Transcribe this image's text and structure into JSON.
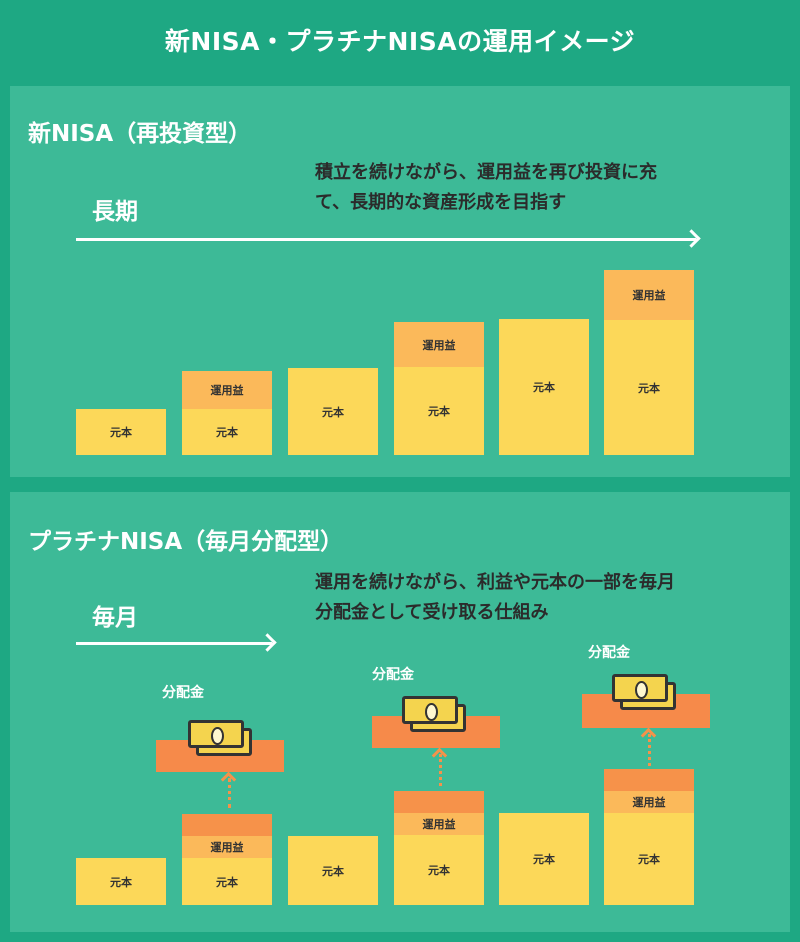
{
  "title": "新NISA・プラチナNISAの運用イメージ",
  "panel_a": {
    "title": "新NISA（再投資型）",
    "period": "長期",
    "description_line1": "積立を続けながら、運用益を再び投資に充",
    "description_line2": "て、長期的な資産形成を目指す",
    "bars": [
      {
        "principal": "元本"
      },
      {
        "principal": "元本",
        "profit": "運用益"
      },
      {
        "principal": "元本"
      },
      {
        "principal": "元本",
        "profit": "運用益"
      },
      {
        "principal": "元本"
      },
      {
        "principal": "元本",
        "profit": "運用益"
      }
    ]
  },
  "panel_b": {
    "title": "プラチナNISA（毎月分配型）",
    "period": "毎月",
    "description_line1": "運用を続けながら、利益や元本の一部を毎月",
    "description_line2": "分配金として受け取る仕組み",
    "distribution_label": "分配金",
    "bars": [
      {
        "principal": "元本"
      },
      {
        "principal": "元本",
        "profit": "運用益"
      },
      {
        "principal": "元本"
      },
      {
        "principal": "元本",
        "profit": "運用益"
      },
      {
        "principal": "元本"
      },
      {
        "principal": "元本",
        "profit": "運用益"
      }
    ]
  },
  "colors": {
    "background": "#1ea883",
    "panel": "#3dba97",
    "principal": "#fcd859",
    "profit": "#fbb95a",
    "distribution": "#f68a4a"
  },
  "icons": [
    "arrow-right-icon",
    "money-bill-icon",
    "dotted-up-arrow-icon"
  ]
}
